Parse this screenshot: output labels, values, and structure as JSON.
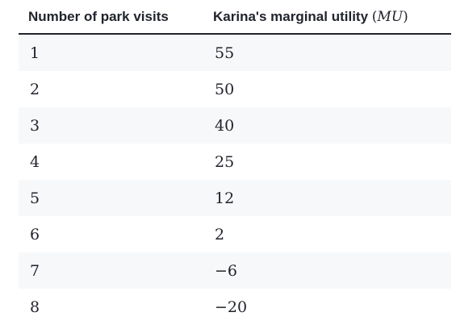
{
  "table": {
    "header": {
      "col1": "Number of park visits",
      "col2_text": "Karina's marginal utility",
      "col2_open": "(",
      "col2_var": "MU",
      "col2_close": ")"
    },
    "rows": [
      {
        "visits": "1",
        "mu": "55"
      },
      {
        "visits": "2",
        "mu": "50"
      },
      {
        "visits": "3",
        "mu": "40"
      },
      {
        "visits": "4",
        "mu": "25"
      },
      {
        "visits": "5",
        "mu": "12"
      },
      {
        "visits": "6",
        "mu": "2"
      },
      {
        "visits": "7",
        "mu": "−6"
      },
      {
        "visits": "8",
        "mu": "−20"
      }
    ]
  }
}
